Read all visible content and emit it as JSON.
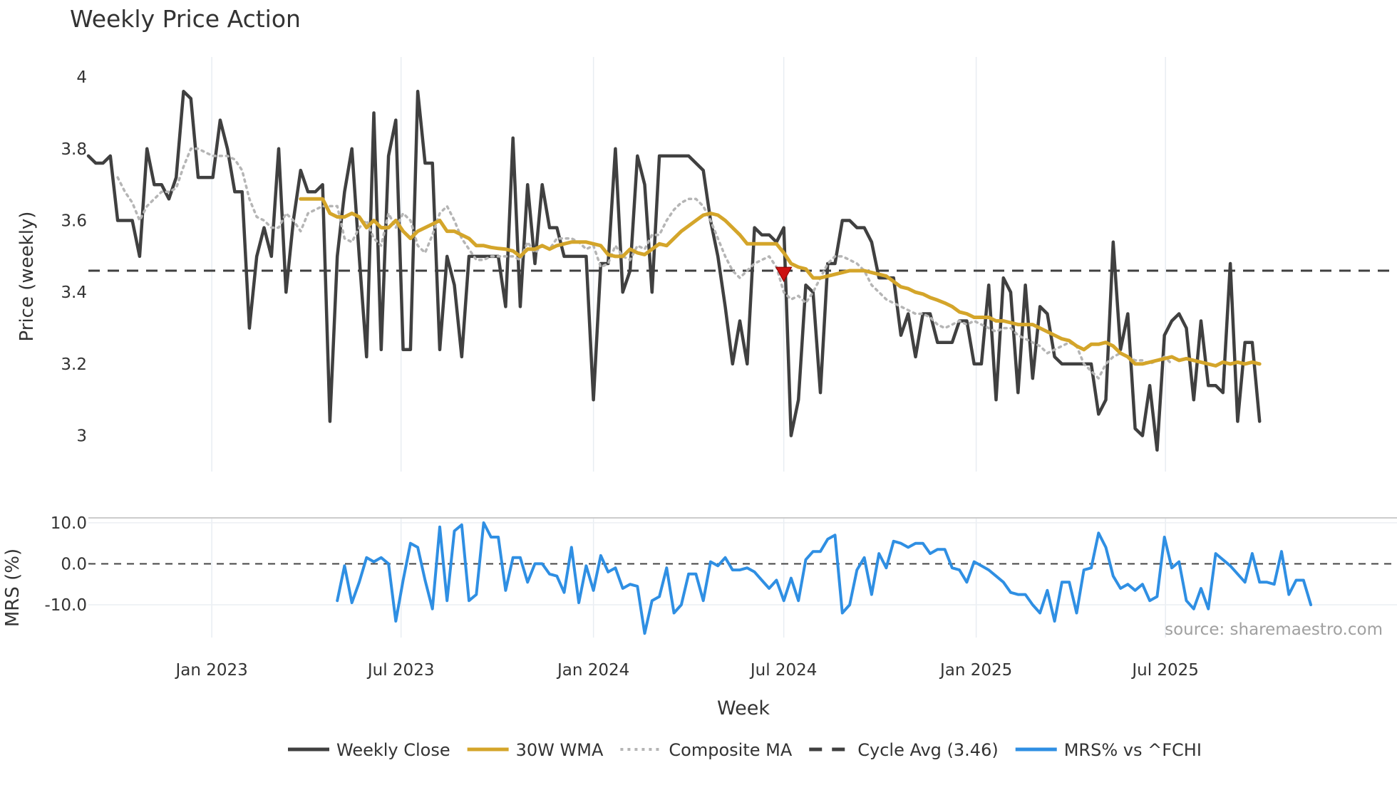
{
  "chart_data": [
    {
      "type": "line",
      "title": "Weekly Price Action",
      "xlabel": "",
      "ylabel": "Price (weekly)",
      "ylim": [
        2.9,
        4.04
      ],
      "yticks": [
        3,
        3.2,
        3.4,
        3.6,
        3.8,
        4
      ],
      "ytick_labels": [
        "3",
        "3.2",
        "3.4",
        "3.6",
        "3.8",
        "4"
      ],
      "x_start": "2022-09-05",
      "week_interval_days": 7,
      "grid": "vertical",
      "cycle_avg": 3.46,
      "marker": {
        "week_index": 95,
        "value": 3.45,
        "shape": "down-triangle",
        "color": "#cc1111"
      },
      "series": [
        {
          "name": "Weekly Close",
          "color": "#404040",
          "style": "solid",
          "start_index": 0,
          "values": [
            3.78,
            3.76,
            3.76,
            3.78,
            3.6,
            3.6,
            3.6,
            3.5,
            3.8,
            3.7,
            3.7,
            3.66,
            3.72,
            3.96,
            3.94,
            3.72,
            3.72,
            3.72,
            3.88,
            3.8,
            3.68,
            3.68,
            3.3,
            3.5,
            3.58,
            3.5,
            3.8,
            3.4,
            3.6,
            3.74,
            3.68,
            3.68,
            3.7,
            3.04,
            3.5,
            3.68,
            3.8,
            3.5,
            3.22,
            3.9,
            3.24,
            3.78,
            3.88,
            3.24,
            3.24,
            3.96,
            3.76,
            3.76,
            3.24,
            3.5,
            3.42,
            3.22,
            3.5,
            3.5,
            3.5,
            3.5,
            3.5,
            3.36,
            3.83,
            3.36,
            3.7,
            3.48,
            3.7,
            3.58,
            3.58,
            3.5,
            3.5,
            3.5,
            3.5,
            3.1,
            3.48,
            3.48,
            3.8,
            3.4,
            3.46,
            3.78,
            3.7,
            3.4,
            3.78,
            3.78,
            3.78,
            3.78,
            3.78,
            3.76,
            3.74,
            3.6,
            3.5,
            3.36,
            3.2,
            3.32,
            3.2,
            3.58,
            3.56,
            3.56,
            3.54,
            3.58,
            3.0,
            3.1,
            3.42,
            3.4,
            3.12,
            3.48,
            3.48,
            3.6,
            3.6,
            3.58,
            3.58,
            3.54,
            3.44,
            3.44,
            3.44,
            3.28,
            3.34,
            3.22,
            3.34,
            3.34,
            3.26,
            3.26,
            3.26,
            3.32,
            3.32,
            3.2,
            3.2,
            3.42,
            3.1,
            3.44,
            3.4,
            3.12,
            3.42,
            3.16,
            3.36,
            3.34,
            3.22,
            3.2,
            3.2,
            3.2,
            3.2,
            3.2,
            3.06,
            3.1,
            3.54,
            3.24,
            3.34,
            3.02,
            3.0,
            3.14,
            2.96,
            3.28,
            3.32,
            3.34,
            3.3,
            3.1,
            3.32,
            3.14,
            3.14,
            3.12,
            3.48,
            3.04,
            3.26,
            3.26,
            3.04
          ]
        },
        {
          "name": "30W WMA",
          "color": "#d4a52a",
          "style": "solid",
          "start_index": 29,
          "values": [
            3.66,
            3.66,
            3.66,
            3.66,
            3.62,
            3.61,
            3.61,
            3.62,
            3.61,
            3.58,
            3.6,
            3.58,
            3.58,
            3.6,
            3.57,
            3.55,
            3.57,
            3.58,
            3.59,
            3.6,
            3.57,
            3.57,
            3.56,
            3.55,
            3.53,
            3.53,
            3.525,
            3.522,
            3.52,
            3.515,
            3.5,
            3.52,
            3.52,
            3.53,
            3.52,
            3.53,
            3.535,
            3.54,
            3.54,
            3.54,
            3.535,
            3.53,
            3.505,
            3.5,
            3.5,
            3.52,
            3.51,
            3.505,
            3.52,
            3.535,
            3.53,
            3.55,
            3.57,
            3.585,
            3.6,
            3.615,
            3.62,
            3.615,
            3.6,
            3.58,
            3.56,
            3.535,
            3.535,
            3.535,
            3.535,
            3.535,
            3.51,
            3.48,
            3.47,
            3.465,
            3.44,
            3.44,
            3.445,
            3.45,
            3.455,
            3.46,
            3.46,
            3.46,
            3.455,
            3.45,
            3.445,
            3.43,
            3.415,
            3.41,
            3.4,
            3.395,
            3.385,
            3.378,
            3.37,
            3.36,
            3.345,
            3.34,
            3.33,
            3.33,
            3.33,
            3.32,
            3.32,
            3.315,
            3.31,
            3.31,
            3.31,
            3.3,
            3.29,
            3.28,
            3.27,
            3.265,
            3.25,
            3.24,
            3.255,
            3.255,
            3.26,
            3.25,
            3.23,
            3.22,
            3.2,
            3.2,
            3.205,
            3.21,
            3.215,
            3.22,
            3.21,
            3.215,
            3.21,
            3.205,
            3.2,
            3.195,
            3.205,
            3.2,
            3.205,
            3.2,
            3.205,
            3.2
          ]
        },
        {
          "name": "Composite MA",
          "color": "#b5b5b5",
          "style": "dotted",
          "start_index": 4,
          "values": [
            3.72,
            3.68,
            3.65,
            3.6,
            3.64,
            3.66,
            3.68,
            3.68,
            3.69,
            3.75,
            3.8,
            3.8,
            3.79,
            3.78,
            3.78,
            3.78,
            3.77,
            3.74,
            3.66,
            3.61,
            3.6,
            3.58,
            3.58,
            3.62,
            3.6,
            3.57,
            3.62,
            3.63,
            3.64,
            3.64,
            3.64,
            3.55,
            3.54,
            3.58,
            3.6,
            3.55,
            3.53,
            3.62,
            3.58,
            3.62,
            3.6,
            3.53,
            3.51,
            3.56,
            3.62,
            3.64,
            3.6,
            3.55,
            3.52,
            3.49,
            3.49,
            3.5,
            3.5,
            3.5,
            3.5,
            3.49,
            3.54,
            3.51,
            3.53,
            3.52,
            3.55,
            3.55,
            3.55,
            3.54,
            3.52,
            3.53,
            3.47,
            3.48,
            3.53,
            3.5,
            3.49,
            3.53,
            3.52,
            3.56,
            3.56,
            3.6,
            3.63,
            3.65,
            3.66,
            3.66,
            3.64,
            3.6,
            3.55,
            3.5,
            3.46,
            3.44,
            3.46,
            3.48,
            3.49,
            3.5,
            3.47,
            3.4,
            3.38,
            3.39,
            3.37,
            3.4,
            3.44,
            3.48,
            3.5,
            3.5,
            3.49,
            3.48,
            3.46,
            3.42,
            3.4,
            3.38,
            3.37,
            3.36,
            3.35,
            3.34,
            3.34,
            3.33,
            3.31,
            3.3,
            3.31,
            3.32,
            3.31,
            3.32,
            3.31,
            3.3,
            3.29,
            3.3,
            3.3,
            3.28,
            3.27,
            3.26,
            3.25,
            3.23,
            3.24,
            3.25,
            3.26,
            3.25,
            3.2,
            3.18,
            3.16,
            3.2,
            3.22,
            3.23,
            3.22,
            3.21,
            3.21,
            3.2,
            3.21,
            3.22,
            3.2
          ]
        },
        {
          "name": "Cycle Avg (3.46)",
          "color": "#404040",
          "style": "dashed"
        }
      ]
    },
    {
      "type": "line",
      "title": "",
      "xlabel": "Week",
      "ylabel": "MRS (%)",
      "ylim": [
        -18,
        11.2
      ],
      "yticks": [
        10,
        0,
        -10
      ],
      "ytick_labels": [
        "10.0",
        "0.0",
        "-10.0"
      ],
      "zero_line": 0,
      "x_start": "2022-09-05",
      "week_interval_days": 7,
      "xtick_labels": [
        "Jan 2023",
        "Jul 2023",
        "Jan 2024",
        "Jul 2024",
        "Jan 2025",
        "Jul 2025"
      ],
      "xtick_dates": [
        "2023-01-01",
        "2023-07-01",
        "2024-01-01",
        "2024-07-01",
        "2025-01-01",
        "2025-07-01"
      ],
      "series": [
        {
          "name": "MRS% vs ^FCHI",
          "color": "#2f8fe3",
          "style": "solid",
          "start_index": 34,
          "values": [
            -9,
            -0.5,
            -9.5,
            -4.5,
            1.5,
            0.5,
            1.5,
            0,
            -14,
            -4,
            5,
            4,
            -4,
            -11,
            9,
            -9,
            8,
            9.5,
            -9,
            -7.5,
            10,
            6.5,
            6.5,
            -6.5,
            1.5,
            1.5,
            -4.5,
            0,
            0,
            -2.5,
            -3,
            -7,
            4,
            -9.5,
            -0.5,
            -6.5,
            2,
            -2,
            -1,
            -6,
            -5,
            -5.5,
            -17,
            -9,
            -8,
            -1,
            -12,
            -10,
            -2.5,
            -2.5,
            -9,
            0.5,
            -0.5,
            1.5,
            -1.5,
            -1.5,
            -1,
            -2,
            -4,
            -6,
            -4,
            -9,
            -3.5,
            -9,
            1,
            3,
            3,
            6,
            7,
            -12,
            -10,
            -1.5,
            1.5,
            -7.5,
            2.5,
            -1,
            5.5,
            5,
            4,
            5,
            5,
            2.5,
            3.5,
            3.5,
            -1,
            -1.5,
            -4.5,
            0.5,
            -0.5,
            -1.5,
            -3,
            -4.5,
            -7,
            -7.5,
            -7.5,
            -10,
            -12,
            -6.5,
            -14,
            -4.5,
            -4.5,
            -12,
            -1.5,
            -1,
            7.5,
            4,
            -3,
            -6,
            -5,
            -6.5,
            -5,
            -9,
            -8,
            6.5,
            -1,
            0.5,
            -9,
            -11,
            -6,
            -11,
            2.5,
            1,
            -0.5,
            -2.5,
            -4.5,
            2.5,
            -4.5,
            -4.5,
            -5,
            3,
            -7.5,
            -4,
            -4,
            -10
          ]
        }
      ]
    }
  ],
  "legend": {
    "position": "bottom",
    "items": [
      {
        "label": "Weekly Close",
        "color": "#404040",
        "style": "solid"
      },
      {
        "label": "30W WMA",
        "color": "#d4a52a",
        "style": "solid"
      },
      {
        "label": "Composite MA",
        "color": "#b5b5b5",
        "style": "dotted"
      },
      {
        "label": "Cycle Avg (3.46)",
        "color": "#404040",
        "style": "dashed"
      },
      {
        "label": "MRS% vs ^FCHI",
        "color": "#2f8fe3",
        "style": "solid"
      }
    ]
  },
  "watermark": "source: sharemaestro.com"
}
